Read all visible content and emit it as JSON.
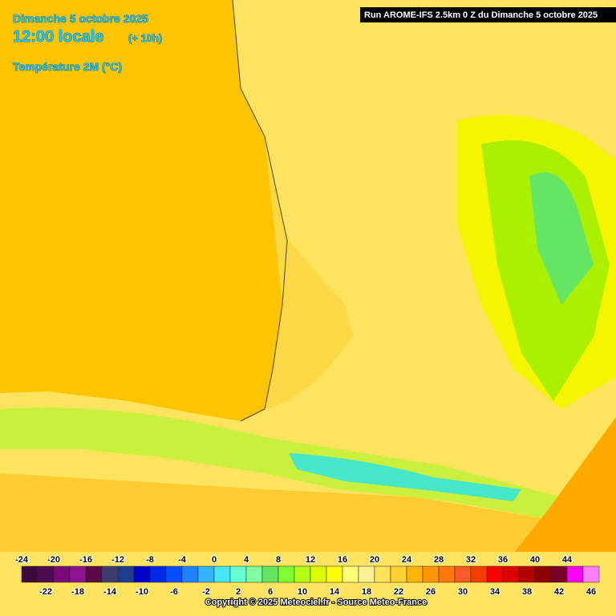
{
  "header": {
    "date": "Dimanche 5 octobre 2025",
    "time": "12:00 locale",
    "lead": "(+ 10h)",
    "parameter": "Température 2M (°C)",
    "run": "Run AROME-IFS 2.5km 0 Z du Dimanche 5 octobre 2025"
  },
  "legend": {
    "values": [
      -24,
      -22,
      -20,
      -18,
      -16,
      -14,
      -12,
      -10,
      -8,
      -6,
      -4,
      -2,
      0,
      2,
      4,
      6,
      8,
      10,
      12,
      14,
      16,
      18,
      20,
      22,
      24,
      26,
      28,
      30,
      32,
      34,
      36,
      38,
      40,
      42,
      44,
      46
    ],
    "colors": [
      "#3c0a3c",
      "#500a50",
      "#7a0a7a",
      "#8c148c",
      "#5a0a46",
      "#3c3c6e",
      "#1e3c8c",
      "#0000c8",
      "#0028e6",
      "#0050ff",
      "#1e82ff",
      "#32b4ff",
      "#46e6ff",
      "#64ffd2",
      "#82ffa0",
      "#64e664",
      "#82ff32",
      "#b4ff14",
      "#dcff00",
      "#ffff00",
      "#ffff78",
      "#fff096",
      "#ffe15a",
      "#ffd232",
      "#ffb400",
      "#ff9600",
      "#ff7800",
      "#ff5a28",
      "#ff3c00",
      "#ff0000",
      "#dc0000",
      "#b40000",
      "#8c0000",
      "#780028",
      "#ff00ff",
      "#ff80ff"
    ]
  },
  "footer": {
    "copyright": "Copyright © 2025 Meteociel.fr - Source Meteo-France"
  }
}
